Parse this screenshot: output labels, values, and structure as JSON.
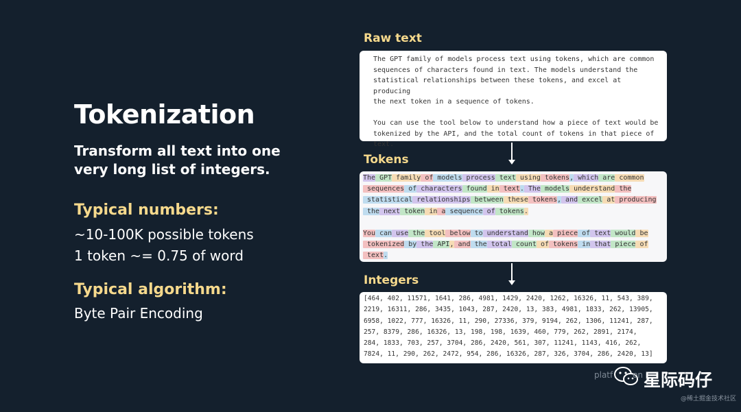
{
  "left": {
    "title": "Tokenization",
    "subtitle_line1": "Transform all text into one",
    "subtitle_line2": "very long list of integers.",
    "typical_numbers_heading": "Typical numbers:",
    "numbers_line1": "~10-100K possible tokens",
    "numbers_line2": "1 token ~= 0.75 of word",
    "typical_algorithm_heading": "Typical algorithm:",
    "algorithm_line": "Byte Pair Encoding"
  },
  "raw_text": {
    "label": "Raw text",
    "paragraph1_lines": [
      "The GPT family of models process text using tokens, which are common",
      "sequences of characters found in text. The models understand the",
      "statistical relationships between these tokens, and excel at producing",
      "the next token in a sequence of tokens."
    ],
    "paragraph2_lines": [
      "You can use the tool below to understand how a piece of text would be",
      "tokenized by the API, and the total count of tokens in that piece of",
      "text."
    ]
  },
  "tokens": {
    "label": "Tokens",
    "lines": [
      [
        "The",
        " GPT",
        " family",
        " of",
        " models",
        " process",
        " text",
        " using",
        " tokens",
        ",",
        " which",
        " are",
        " common"
      ],
      [
        " sequences",
        " of",
        " characters",
        " found",
        " in",
        " text",
        ".",
        " The",
        " models",
        " understand",
        " the"
      ],
      [
        " statistical",
        " relationships",
        " between",
        " these",
        " tokens",
        ",",
        " and",
        " excel",
        " at",
        " producing"
      ],
      [
        " the",
        " next",
        " token",
        " in",
        " a",
        " sequence",
        " of",
        " tokens",
        "."
      ],
      [],
      [
        "You",
        " can",
        " use",
        " the",
        " tool",
        " below",
        " to",
        " understand",
        " how",
        " a",
        " piece",
        " of",
        " text",
        " would",
        " be"
      ],
      [
        " tokenized",
        " by",
        " the",
        " API",
        ",",
        " and",
        " the",
        " total",
        " count",
        " of",
        " tokens",
        " in",
        " that",
        " piece",
        " of"
      ],
      [
        " text",
        "."
      ]
    ]
  },
  "integers": {
    "label": "Integers",
    "lines": [
      "[464, 402, 11571, 1641, 286, 4981, 1429, 2420, 1262, 16326, 11, 543, 389,",
      "2219, 16311, 286, 3435, 1043, 287, 2420, 13, 383, 4981, 1833, 262, 13905,",
      "6958, 1022, 777, 16326, 11, 290, 27336, 379, 9194, 262, 1306, 11241, 287,",
      "257, 8379, 286, 16326, 13, 198, 198, 1639, 460, 779, 262, 2891, 2174,",
      "284, 1833, 703, 257, 3704, 286, 2420, 561, 307, 11241, 1143, 416, 262,",
      "7824, 11, 290, 262, 2472, 954, 286, 16326, 287, 326, 3704, 286, 2420, 13]"
    ]
  },
  "watermark": {
    "url_fragment": "platf",
    "url_fragment2": "en",
    "brand": "星际码仔",
    "sub": "@稀土掘金技术社区"
  },
  "colors": {
    "background": "#14202d",
    "accent_yellow": "#f6d98c",
    "token_purple": "#d2c5ed",
    "token_green": "#c2e6c7",
    "token_orange": "#f6dcb5",
    "token_red": "#f3c0c0",
    "token_blue": "#bfdcef"
  },
  "icons": {
    "arrow": "down-arrow-icon",
    "wechat": "wechat-icon"
  }
}
